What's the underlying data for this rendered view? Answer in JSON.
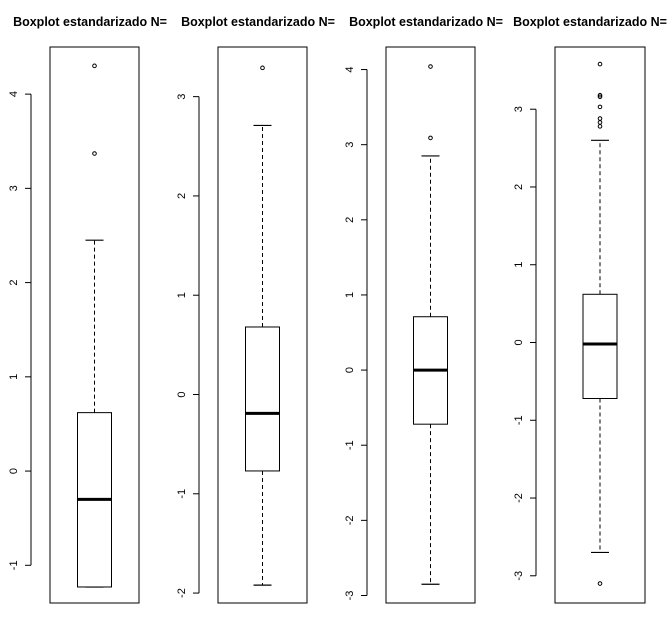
{
  "chart_data": [
    {
      "type": "boxplot",
      "title": "Boxplot estandarizado N=",
      "xlabel": "",
      "ylabel": "",
      "ylim": [
        -1.4,
        4.5
      ],
      "yticks": [
        -1,
        0,
        1,
        2,
        3,
        4
      ],
      "box": {
        "whisker_low": -1.23,
        "q1": -1.23,
        "median": -0.3,
        "q3": 0.62,
        "whisker_high": 2.45
      },
      "outliers": [
        3.37,
        4.3
      ]
    },
    {
      "type": "boxplot",
      "title": "Boxplot estandarizado N=",
      "xlabel": "",
      "ylabel": "",
      "ylim": [
        -2.1,
        3.5
      ],
      "yticks": [
        -2,
        -1,
        0,
        1,
        2,
        3
      ],
      "box": {
        "whisker_low": -1.92,
        "q1": -0.77,
        "median": -0.19,
        "q3": 0.68,
        "whisker_high": 2.71
      },
      "outliers": [
        3.29
      ]
    },
    {
      "type": "boxplot",
      "title": "Boxplot estandarizado N=",
      "xlabel": "",
      "ylabel": "",
      "ylim": [
        -3.1,
        4.3
      ],
      "yticks": [
        -3,
        -2,
        -1,
        0,
        1,
        2,
        3,
        4
      ],
      "box": {
        "whisker_low": -2.85,
        "q1": -0.72,
        "median": 0.0,
        "q3": 0.71,
        "whisker_high": 2.85
      },
      "outliers": [
        3.09,
        4.04
      ]
    },
    {
      "type": "boxplot",
      "title": "Boxplot estandarizado N=",
      "xlabel": "",
      "ylabel": "",
      "ylim": [
        -3.35,
        3.8
      ],
      "yticks": [
        -3,
        -2,
        -1,
        0,
        1,
        2,
        3
      ],
      "box": {
        "whisker_low": -2.7,
        "q1": -0.72,
        "median": -0.02,
        "q3": 0.62,
        "whisker_high": 2.6
      },
      "outliers": [
        -3.1,
        2.78,
        2.83,
        2.88,
        3.03,
        3.16,
        3.18,
        3.58
      ]
    }
  ]
}
